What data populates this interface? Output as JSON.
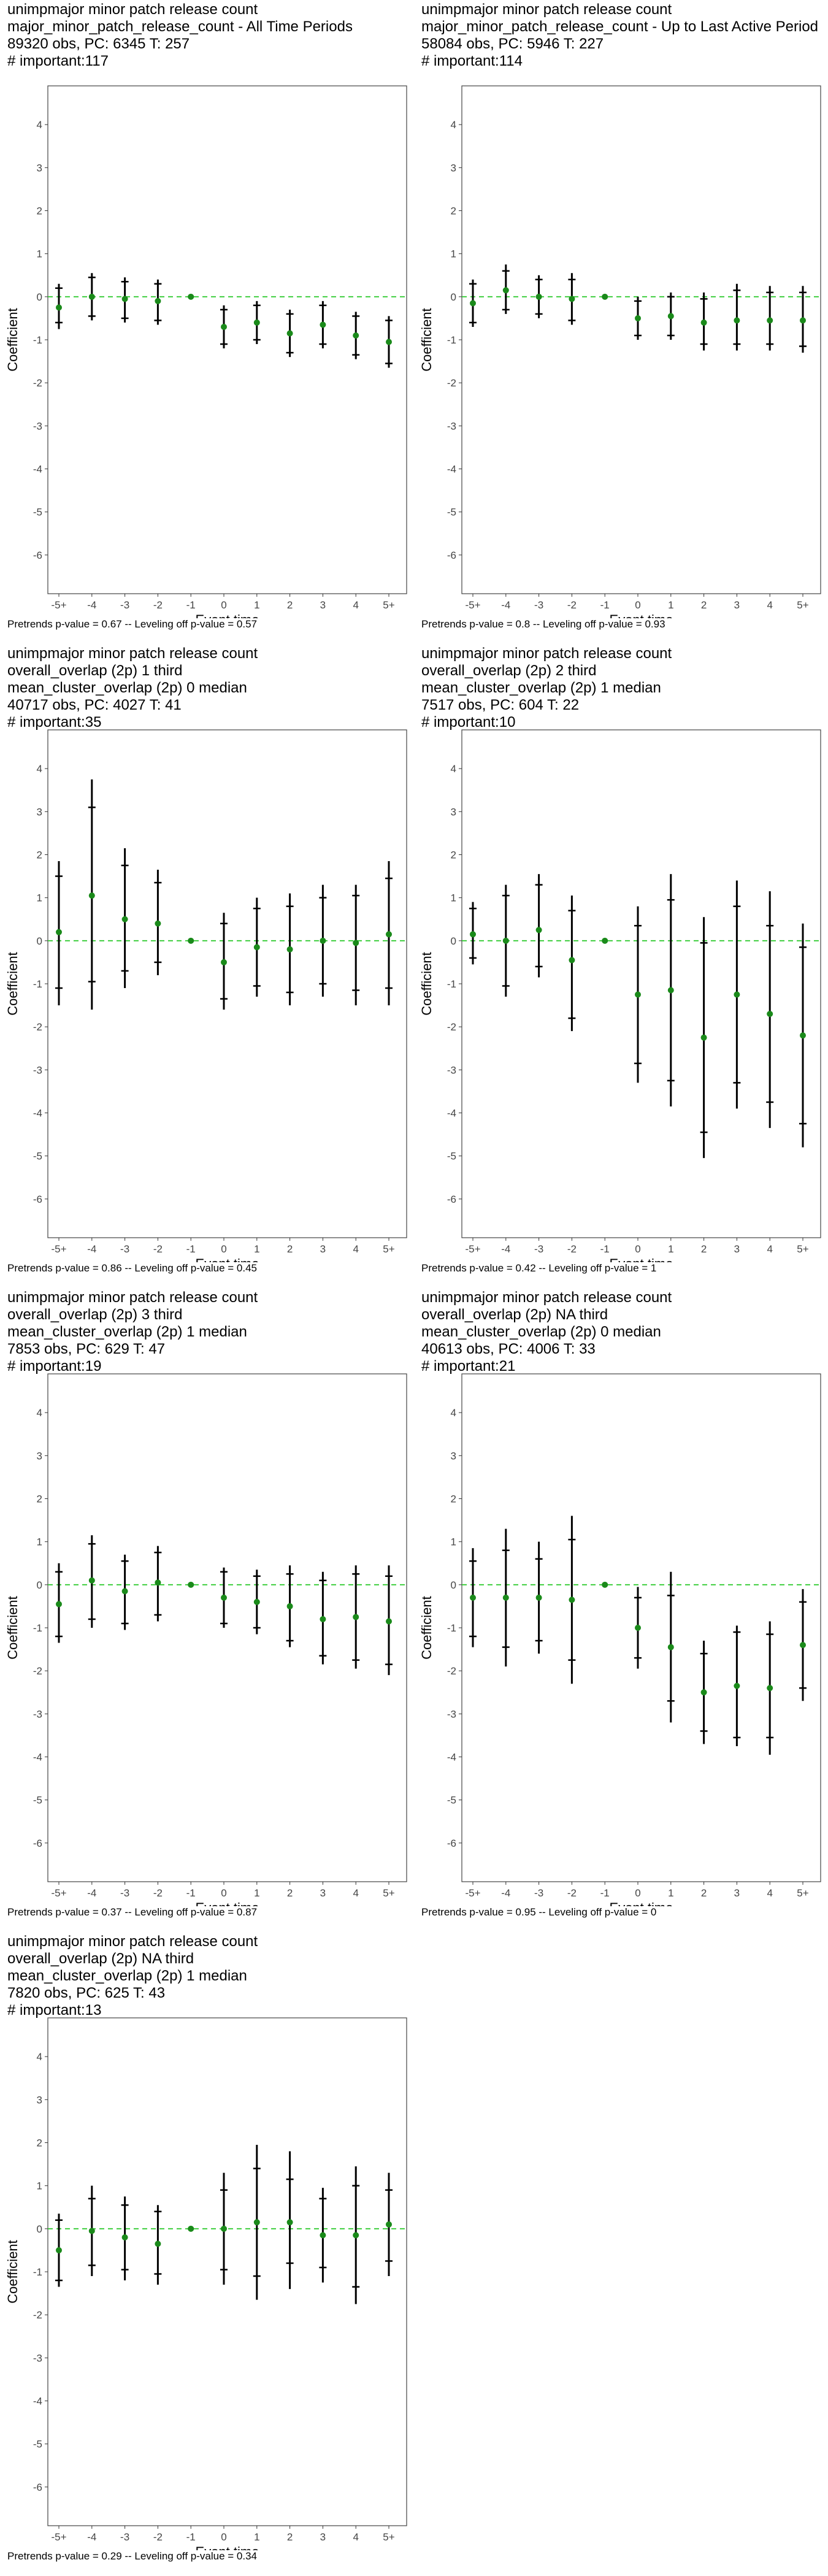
{
  "axis": {
    "xlabel": "Event time",
    "ylabel": "Coefficient",
    "x_ticks": [
      "-5+",
      "-4",
      "-3",
      "-2",
      "-1",
      "0",
      "1",
      "2",
      "3",
      "4",
      "5+"
    ],
    "y_ticks": [
      "4",
      "3",
      "2",
      "1",
      "0",
      "-1",
      "-2",
      "-3",
      "-4",
      "-5",
      "-6"
    ]
  },
  "colors": {
    "point": "#1a8a1a",
    "zero_line": "#33cc33",
    "error_bar": "#000000",
    "panel_border": "#444444"
  },
  "panels": [
    {
      "title_lines": [
        " unimpmajor minor patch release count",
        "major_minor_patch_release_count - All Time Periods",
        "89320 obs, PC: 6345 T: 257",
        "# important:117"
      ],
      "caption": "Pretrends p-value = 0.67 -- Leveling off p-value = 0.57"
    },
    {
      "title_lines": [
        " unimpmajor minor patch release count",
        "major_minor_patch_release_count - Up to Last Active Period",
        "58084 obs, PC: 5946 T: 227",
        "# important:114"
      ],
      "caption": "Pretrends p-value = 0.8 -- Leveling off p-value = 0.93"
    },
    {
      "title_lines": [
        " unimpmajor minor patch release count",
        "overall_overlap (2p) 1 third",
        "mean_cluster_overlap (2p) 0 median",
        "40717 obs, PC: 4027 T: 41",
        "# important:35"
      ],
      "caption": "Pretrends p-value = 0.86 -- Leveling off p-value = 0.45"
    },
    {
      "title_lines": [
        " unimpmajor minor patch release count",
        "overall_overlap (2p) 2 third",
        "mean_cluster_overlap (2p) 1 median",
        "7517 obs, PC: 604 T: 22",
        "# important:10"
      ],
      "caption": "Pretrends p-value = 0.42 -- Leveling off p-value = 1"
    },
    {
      "title_lines": [
        " unimpmajor minor patch release count",
        "overall_overlap (2p) 3 third",
        "mean_cluster_overlap (2p) 1 median",
        "7853 obs, PC: 629 T: 47",
        "# important:19"
      ],
      "caption": "Pretrends p-value = 0.37 -- Leveling off p-value = 0.87"
    },
    {
      "title_lines": [
        " unimpmajor minor patch release count",
        "overall_overlap (2p) NA third",
        "mean_cluster_overlap (2p) 0 median",
        "40613 obs, PC: 4006 T: 33",
        "# important:21"
      ],
      "caption": "Pretrends p-value = 0.95 -- Leveling off p-value = 0"
    },
    {
      "title_lines": [
        " unimpmajor minor patch release count",
        "overall_overlap (2p) NA third",
        "mean_cluster_overlap (2p) 1 median",
        "7820 obs, PC: 625 T: 43",
        "# important:13"
      ],
      "caption": "Pretrends p-value = 0.29 -- Leveling off p-value = 0.34"
    }
  ],
  "chart_data": [
    {
      "type": "scatter",
      "title": "unimpmajor minor patch release count major_minor_patch_release_count - All Time Periods",
      "xlabel": "Event time",
      "ylabel": "Coefficient",
      "ylim": [
        -6.9,
        4.9
      ],
      "grid": false,
      "x": [
        "-5+",
        "-4",
        "-3",
        "-2",
        "-1",
        "0",
        "1",
        "2",
        "3",
        "4",
        "5+"
      ],
      "y": [
        -0.25,
        0.0,
        -0.05,
        -0.1,
        0.0,
        -0.7,
        -0.6,
        -0.85,
        -0.65,
        -0.9,
        -1.05
      ],
      "ci95_low": [
        -0.75,
        -0.55,
        -0.6,
        -0.65,
        0.0,
        -1.2,
        -1.1,
        -1.4,
        -1.2,
        -1.45,
        -1.65
      ],
      "ci95_high": [
        0.3,
        0.55,
        0.45,
        0.4,
        0.0,
        -0.2,
        -0.1,
        -0.3,
        -0.1,
        -0.35,
        -0.45
      ],
      "ci90_low": [
        -0.6,
        -0.45,
        -0.5,
        -0.55,
        0.0,
        -1.1,
        -1.0,
        -1.3,
        -1.1,
        -1.35,
        -1.55
      ],
      "ci90_high": [
        0.2,
        0.45,
        0.35,
        0.3,
        0.0,
        -0.3,
        -0.2,
        -0.4,
        -0.2,
        -0.45,
        -0.55
      ]
    },
    {
      "type": "scatter",
      "title": "unimpmajor minor patch release count major_minor_patch_release_count - Up to Last Active Period",
      "xlabel": "Event time",
      "ylabel": "Coefficient",
      "ylim": [
        -6.9,
        4.9
      ],
      "grid": false,
      "x": [
        "-5+",
        "-4",
        "-3",
        "-2",
        "-1",
        "0",
        "1",
        "2",
        "3",
        "4",
        "5+"
      ],
      "y": [
        -0.15,
        0.15,
        0.0,
        -0.05,
        0.0,
        -0.5,
        -0.45,
        -0.6,
        -0.55,
        -0.55,
        -0.55
      ],
      "ci95_low": [
        -0.7,
        -0.4,
        -0.5,
        -0.65,
        0.0,
        -1.0,
        -1.0,
        -1.25,
        -1.25,
        -1.25,
        -1.3
      ],
      "ci95_high": [
        0.4,
        0.75,
        0.5,
        0.55,
        0.0,
        0.0,
        0.1,
        0.1,
        0.3,
        0.25,
        0.25
      ],
      "ci90_low": [
        -0.6,
        -0.3,
        -0.4,
        -0.55,
        0.0,
        -0.9,
        -0.9,
        -1.1,
        -1.1,
        -1.1,
        -1.15
      ],
      "ci90_high": [
        0.3,
        0.6,
        0.4,
        0.4,
        0.0,
        -0.1,
        0.0,
        -0.05,
        0.15,
        0.1,
        0.1
      ]
    },
    {
      "type": "scatter",
      "title": "unimpmajor minor patch release count overall_overlap (2p) 1 third mean_cluster_overlap (2p) 0 median",
      "xlabel": "Event time",
      "ylabel": "Coefficient",
      "ylim": [
        -6.9,
        4.9
      ],
      "grid": false,
      "x": [
        "-5+",
        "-4",
        "-3",
        "-2",
        "-1",
        "0",
        "1",
        "2",
        "3",
        "4",
        "5+"
      ],
      "y": [
        0.2,
        1.05,
        0.5,
        0.4,
        0.0,
        -0.5,
        -0.15,
        -0.2,
        0.0,
        -0.05,
        0.15
      ],
      "ci95_low": [
        -1.5,
        -1.6,
        -1.1,
        -0.8,
        0.0,
        -1.6,
        -1.3,
        -1.5,
        -1.3,
        -1.5,
        -1.5
      ],
      "ci95_high": [
        1.85,
        3.75,
        2.15,
        1.65,
        0.0,
        0.65,
        1.0,
        1.1,
        1.3,
        1.3,
        1.85
      ],
      "ci90_low": [
        -1.1,
        -0.95,
        -0.7,
        -0.5,
        0.0,
        -1.35,
        -1.05,
        -1.2,
        -1.0,
        -1.15,
        -1.1
      ],
      "ci90_high": [
        1.5,
        3.1,
        1.75,
        1.35,
        0.0,
        0.4,
        0.75,
        0.8,
        1.0,
        1.05,
        1.45
      ]
    },
    {
      "type": "scatter",
      "title": "unimpmajor minor patch release count overall_overlap (2p) 2 third mean_cluster_overlap (2p) 1 median",
      "xlabel": "Event time",
      "ylabel": "Coefficient",
      "ylim": [
        -6.9,
        4.9
      ],
      "grid": false,
      "x": [
        "-5+",
        "-4",
        "-3",
        "-2",
        "-1",
        "0",
        "1",
        "2",
        "3",
        "4",
        "5+"
      ],
      "y": [
        0.15,
        0.0,
        0.25,
        -0.45,
        0.0,
        -1.25,
        -1.15,
        -2.25,
        -1.25,
        -1.7,
        -2.2
      ],
      "ci95_low": [
        -0.55,
        -1.3,
        -0.85,
        -2.1,
        0.0,
        -3.3,
        -3.85,
        -5.05,
        -3.9,
        -4.35,
        -4.8
      ],
      "ci95_high": [
        0.9,
        1.3,
        1.55,
        1.05,
        0.0,
        0.8,
        1.55,
        0.55,
        1.4,
        1.15,
        0.4
      ],
      "ci90_low": [
        -0.4,
        -1.05,
        -0.6,
        -1.8,
        0.0,
        -2.85,
        -3.25,
        -4.45,
        -3.3,
        -3.75,
        -4.25
      ],
      "ci90_high": [
        0.75,
        1.05,
        1.3,
        0.7,
        0.0,
        0.35,
        0.95,
        -0.05,
        0.8,
        0.35,
        -0.15
      ]
    },
    {
      "type": "scatter",
      "title": "unimpmajor minor patch release count overall_overlap (2p) 3 third mean_cluster_overlap (2p) 1 median",
      "xlabel": "Event time",
      "ylabel": "Coefficient",
      "ylim": [
        -6.9,
        4.9
      ],
      "grid": false,
      "x": [
        "-5+",
        "-4",
        "-3",
        "-2",
        "-1",
        "0",
        "1",
        "2",
        "3",
        "4",
        "5+"
      ],
      "y": [
        -0.45,
        0.1,
        -0.15,
        0.05,
        0.0,
        -0.3,
        -0.4,
        -0.5,
        -0.8,
        -0.75,
        -0.85
      ],
      "ci95_low": [
        -1.35,
        -1.0,
        -1.05,
        -0.85,
        0.0,
        -1.0,
        -1.15,
        -1.45,
        -1.85,
        -1.95,
        -2.1
      ],
      "ci95_high": [
        0.5,
        1.15,
        0.7,
        0.9,
        0.0,
        0.4,
        0.35,
        0.45,
        0.3,
        0.45,
        0.45
      ],
      "ci90_low": [
        -1.2,
        -0.8,
        -0.9,
        -0.7,
        0.0,
        -0.9,
        -1.0,
        -1.3,
        -1.65,
        -1.75,
        -1.85
      ],
      "ci90_high": [
        0.3,
        0.95,
        0.55,
        0.75,
        0.0,
        0.3,
        0.2,
        0.25,
        0.1,
        0.25,
        0.2
      ]
    },
    {
      "type": "scatter",
      "title": "unimpmajor minor patch release count overall_overlap (2p) NA third mean_cluster_overlap (2p) 0 median",
      "xlabel": "Event time",
      "ylabel": "Coefficient",
      "ylim": [
        -6.9,
        4.9
      ],
      "grid": false,
      "x": [
        "-5+",
        "-4",
        "-3",
        "-2",
        "-1",
        "0",
        "1",
        "2",
        "3",
        "4",
        "5+"
      ],
      "y": [
        -0.3,
        -0.3,
        -0.3,
        -0.35,
        0.0,
        -1.0,
        -1.45,
        -2.5,
        -2.35,
        -2.4,
        -1.4
      ],
      "ci95_low": [
        -1.45,
        -1.9,
        -1.6,
        -2.3,
        0.0,
        -1.95,
        -3.2,
        -3.7,
        -3.75,
        -3.95,
        -2.7
      ],
      "ci95_high": [
        0.85,
        1.3,
        1.0,
        1.6,
        0.0,
        -0.05,
        0.3,
        -1.3,
        -0.95,
        -0.85,
        -0.1
      ],
      "ci90_low": [
        -1.2,
        -1.45,
        -1.3,
        -1.75,
        0.0,
        -1.7,
        -2.7,
        -3.4,
        -3.55,
        -3.55,
        -2.4
      ],
      "ci90_high": [
        0.55,
        0.8,
        0.6,
        1.05,
        0.0,
        -0.3,
        -0.25,
        -1.6,
        -1.1,
        -1.15,
        -0.4
      ]
    },
    {
      "type": "scatter",
      "title": "unimpmajor minor patch release count overall_overlap (2p) NA third mean_cluster_overlap (2p) 1 median",
      "xlabel": "Event time",
      "ylabel": "Coefficient",
      "ylim": [
        -6.9,
        4.9
      ],
      "grid": false,
      "x": [
        "-5+",
        "-4",
        "-3",
        "-2",
        "-1",
        "0",
        "1",
        "2",
        "3",
        "4",
        "5+"
      ],
      "y": [
        -0.5,
        -0.05,
        -0.2,
        -0.35,
        0.0,
        0.0,
        0.15,
        0.15,
        -0.15,
        -0.15,
        0.1
      ],
      "ci95_low": [
        -1.35,
        -1.1,
        -1.2,
        -1.3,
        0.0,
        -1.3,
        -1.65,
        -1.4,
        -1.25,
        -1.75,
        -1.1
      ],
      "ci95_high": [
        0.35,
        1.0,
        0.75,
        0.55,
        0.0,
        1.3,
        1.95,
        1.8,
        0.95,
        1.45,
        1.3
      ],
      "ci90_low": [
        -1.2,
        -0.85,
        -0.95,
        -1.05,
        0.0,
        -0.95,
        -1.1,
        -0.8,
        -0.9,
        -1.35,
        -0.75
      ],
      "ci90_high": [
        0.2,
        0.7,
        0.55,
        0.4,
        0.0,
        0.9,
        1.4,
        1.15,
        0.7,
        1.0,
        0.9
      ]
    }
  ]
}
